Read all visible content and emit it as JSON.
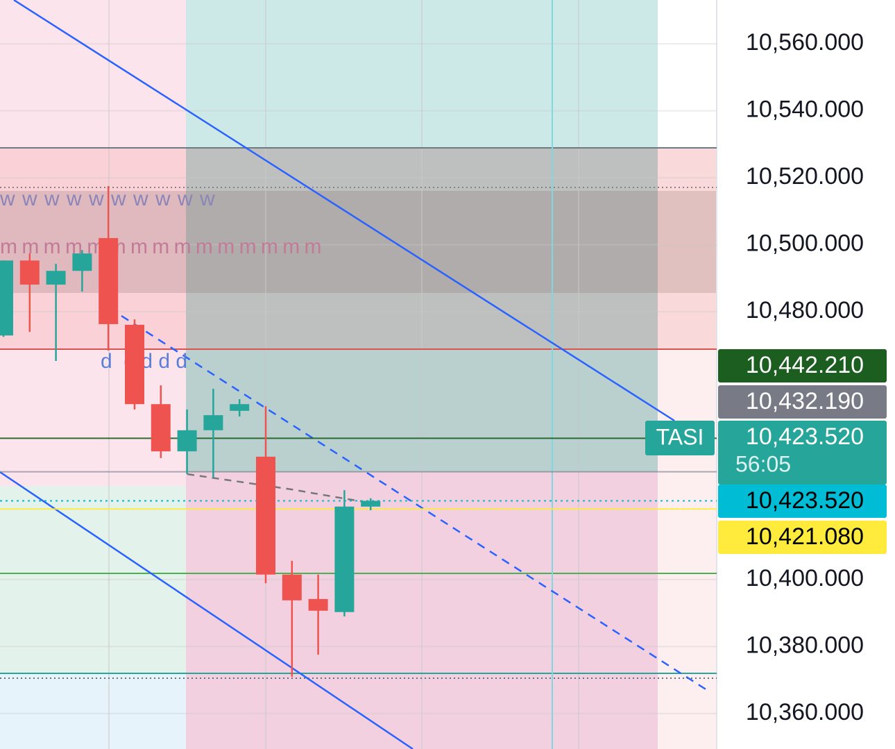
{
  "chart_data": {
    "type": "candlestick",
    "symbol": "TASI",
    "countdown": "56:05",
    "annotations": [
      "w w w w w w w w w w",
      "m m m m m m m m m m m m m m m",
      "d  d d d d"
    ],
    "open": [
      10472.9,
      10495.3,
      10488.1,
      10492.2,
      10502.0,
      10476.1,
      10452.4,
      10438.3,
      10444.6,
      10450.4,
      10436.7,
      10401.5,
      10394.2,
      10390.3,
      10421.8
    ],
    "high": [
      10495.3,
      10497.4,
      10494.3,
      10498.4,
      10517.5,
      10477.7,
      10458.0,
      10450.8,
      10457.0,
      10453.9,
      10451.8,
      10405.6,
      10401.5,
      10426.7,
      10424.3
    ],
    "low": [
      10472.5,
      10474.0,
      10465.3,
      10486.0,
      10468.4,
      10450.8,
      10436.3,
      10431.5,
      10430.5,
      10448.7,
      10398.9,
      10371.0,
      10377.6,
      10389.0,
      10420.7
    ],
    "close": [
      10495.3,
      10488.1,
      10492.2,
      10497.4,
      10476.3,
      10452.4,
      10438.3,
      10444.6,
      10449.1,
      10452.4,
      10401.5,
      10393.8,
      10390.7,
      10421.8,
      10423.52
    ],
    "up_color": "#26a69a",
    "down_color": "#ef5350",
    "ylim": [
      10349.4,
      10573.1
    ],
    "yticks": [
      {
        "value": 10360,
        "label": "10,360.000"
      },
      {
        "value": 10380,
        "label": "10,380.000"
      },
      {
        "value": 10400,
        "label": "10,400.000"
      },
      {
        "value": 10480,
        "label": "10,480.000"
      },
      {
        "value": 10500,
        "label": "10,500.000"
      },
      {
        "value": 10520,
        "label": "10,520.000"
      },
      {
        "value": 10540,
        "label": "10,540.000"
      },
      {
        "value": 10560,
        "label": "10,560.000"
      }
    ],
    "grid": true,
    "price_labels": [
      {
        "value": 10442.21,
        "label": "10,442.210",
        "color": "#1b5e20",
        "text_color": "#ffffff"
      },
      {
        "value": 10432.19,
        "label": "10,432.190",
        "color": "#787b86",
        "text_color": "#ffffff"
      },
      {
        "value": 10423.52,
        "label": "10,423.520",
        "color": "#26a69a",
        "text_color": "#ffffff"
      },
      {
        "value": 10423.52,
        "label": "10,423.520",
        "color": "#00bcd4",
        "text_color": "#000000"
      },
      {
        "value": 10421.08,
        "label": "10,421.080",
        "color": "#ffeb3b",
        "text_color": "#000000"
      }
    ]
  }
}
